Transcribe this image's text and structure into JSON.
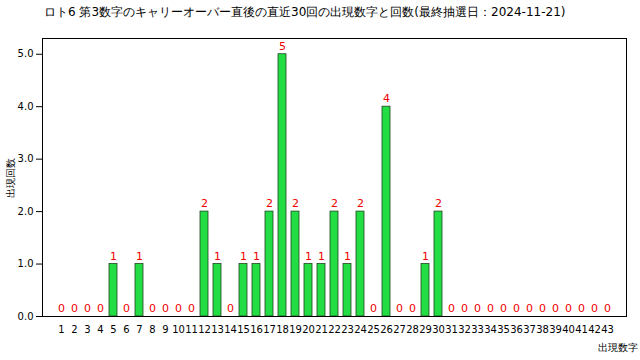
{
  "chart_data": {
    "type": "bar",
    "title": "ロト6 第3数字のキャリーオーバー直後の直近30回の出現数字と回数(最終抽選日：2024-11-21)",
    "x_label": "出現数字",
    "y_label": "出現回数",
    "categories": [
      1,
      2,
      3,
      4,
      5,
      6,
      7,
      8,
      9,
      10,
      11,
      12,
      13,
      14,
      15,
      16,
      17,
      18,
      19,
      20,
      21,
      22,
      23,
      24,
      25,
      26,
      27,
      28,
      29,
      30,
      31,
      32,
      33,
      34,
      35,
      36,
      37,
      38,
      39,
      40,
      41,
      42,
      43
    ],
    "values": [
      0,
      0,
      0,
      0,
      1,
      0,
      1,
      0,
      0,
      0,
      0,
      2,
      1,
      0,
      1,
      1,
      2,
      5,
      2,
      1,
      1,
      2,
      1,
      2,
      0,
      4,
      0,
      0,
      1,
      2,
      0,
      0,
      0,
      0,
      0,
      0,
      0,
      0,
      0,
      0,
      0,
      0,
      0
    ],
    "color": "#22dd44",
    "ylim": [
      0,
      5.3
    ],
    "yticks": [
      0,
      1,
      2,
      3,
      4,
      5
    ],
    "grid": false,
    "data_labels": true
  }
}
